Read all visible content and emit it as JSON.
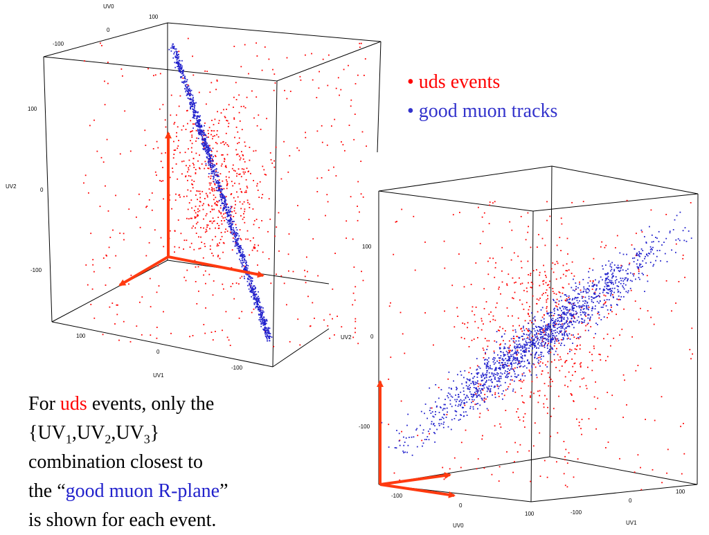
{
  "colors": {
    "uds": "#ff0000",
    "muon": "#2222cc",
    "arrow": "#ff3a10",
    "frame": "#000000"
  },
  "legend": [
    {
      "label": "• uds events",
      "color": "#ff0000"
    },
    {
      "label": "• good muon tracks",
      "color": "#3333cc"
    }
  ],
  "caption": {
    "p1": "For ",
    "uds": "uds",
    "p2": " events, only the",
    "lb": "{UV",
    "s1": "1",
    "c1": ",UV",
    "s2": "2",
    "c2": ",UV",
    "s3": "3",
    "rb": "}",
    "line3": "combination closest to",
    "p3": "the “",
    "plane": "good muon R-plane",
    "p4": "”",
    "line5": "is shown for each event."
  },
  "chart_data": [
    {
      "type": "scatter",
      "title": "",
      "axes": [
        "UV0",
        "UV1",
        "UV2"
      ],
      "axis_labels": {
        "uv0": "UV0",
        "uv1": "UV1",
        "uv2": "UV2"
      },
      "tick_labels": {
        "uv0": [
          "100",
          "0",
          "-100"
        ],
        "uv1": [
          "100",
          "0",
          "-100"
        ],
        "uv2": [
          "100",
          "0",
          "-100"
        ]
      },
      "series": [
        {
          "name": "uds events",
          "color": "#ff0000",
          "distribution": "diffuse cloud centred near origin"
        },
        {
          "name": "good muon tracks",
          "color": "#2222cc",
          "distribution": "narrow band along the muon R-plane direction"
        }
      ]
    },
    {
      "type": "scatter",
      "title": "",
      "axes": [
        "UV0",
        "UV1",
        "UV2"
      ],
      "axis_labels": {
        "uv0": "UV0",
        "uv1": "UV1",
        "uv2": "UV2"
      },
      "tick_labels": {
        "uv0": [
          "-100",
          "0",
          "100"
        ],
        "uv1": [
          "-100",
          "0",
          "100"
        ],
        "uv2": [
          "100",
          "0",
          "-100"
        ]
      },
      "series": [
        {
          "name": "uds events",
          "color": "#ff0000",
          "distribution": "broad diagonal cloud"
        },
        {
          "name": "good muon tracks",
          "color": "#2222cc",
          "distribution": "diagonal band along the muon R-plane"
        }
      ]
    }
  ]
}
